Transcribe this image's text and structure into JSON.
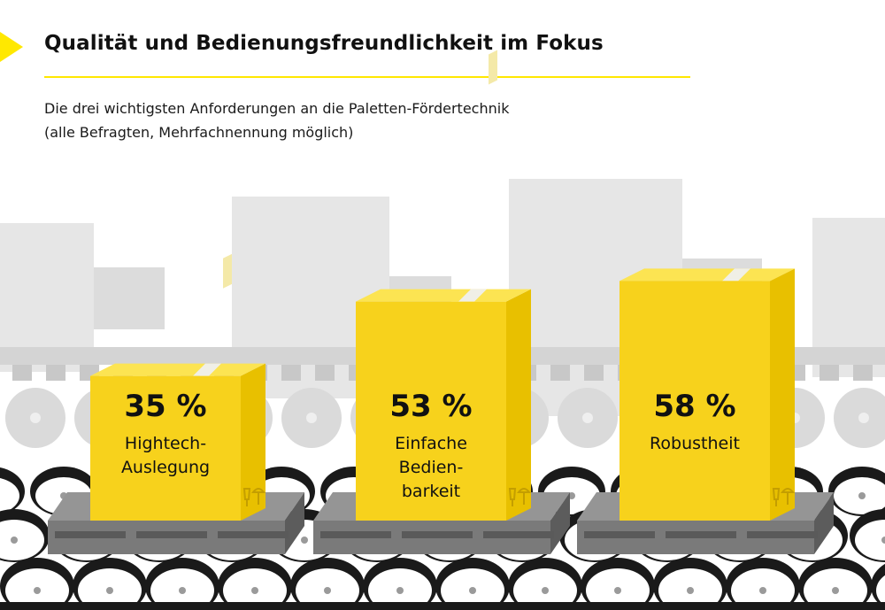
{
  "header": {
    "title": "Qualität und Bedienungsfreundlichkeit im Fokus",
    "subtitle_line1": "Die drei wichtigsten Anforderungen an die Paletten-Fördertechnik",
    "subtitle_line2": "(alle Befragten, Mehrfachnennung möglich)"
  },
  "colors": {
    "accent": "#FFE800",
    "box_front": "#F7D21C",
    "box_side": "#E8C000",
    "box_top": "#FCE452",
    "pallet": "#7A7A7A",
    "background_shapes": "#E6E6E6",
    "roller_dark": "#1A1A1A"
  },
  "chart_data": {
    "type": "bar",
    "value_unit": "%",
    "categories": [
      {
        "label_lines": [
          "Hightech-",
          "Auslegung"
        ],
        "value_label": "35 %"
      },
      {
        "label_lines": [
          "Einfache",
          "Bedien-",
          "barkeit"
        ],
        "value_label": "53 %"
      },
      {
        "label_lines": [
          "Robustheit"
        ],
        "value_label": "58 %"
      }
    ],
    "values": [
      35,
      53,
      58
    ],
    "ylim": [
      0,
      60
    ],
    "legend": "none",
    "grid": false
  }
}
